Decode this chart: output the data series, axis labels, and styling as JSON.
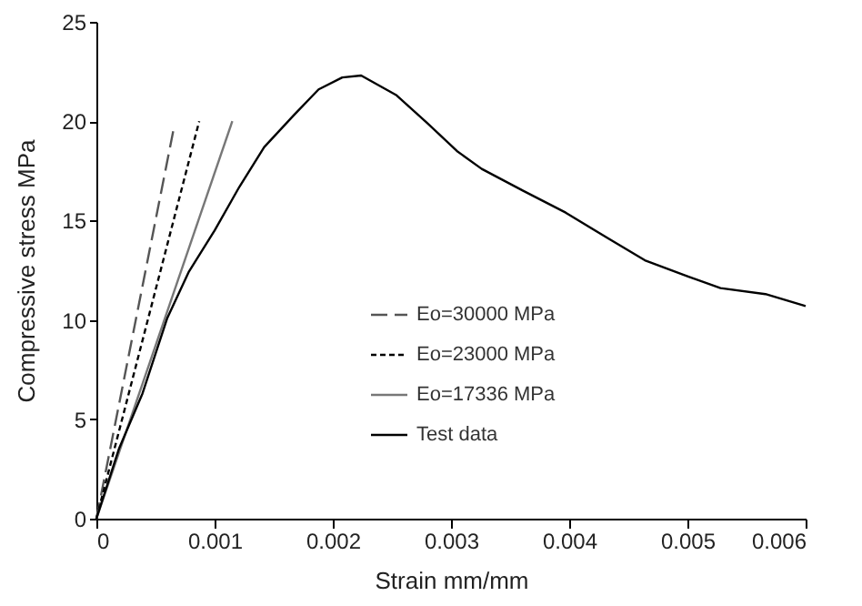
{
  "chart_data": {
    "type": "line",
    "xlabel": "Strain  mm/mm",
    "ylabel": "Compressive stress  MPa",
    "xlim": [
      0,
      0.006
    ],
    "xticks": [
      0,
      0.001,
      0.002,
      0.003,
      0.004,
      0.005,
      0.006
    ],
    "ylim": [
      0,
      25
    ],
    "yticks": [
      0,
      5,
      10,
      15,
      20,
      25
    ],
    "grid": false,
    "legend": "right",
    "marker": "none",
    "series": [
      {
        "name": "Eo=30000 MPa",
        "color": "#555555",
        "line_style": "dashed",
        "x": [
          0,
          0.00066
        ],
        "values": [
          0,
          19.8
        ]
      },
      {
        "name": "Eo=23000 MPa",
        "color": "#000000",
        "line_style": "dotted",
        "x": [
          0,
          0.00087
        ],
        "values": [
          0,
          20
        ]
      },
      {
        "name": "Eo=17336 MPa",
        "color": "#777777",
        "line_style": "solid",
        "x": [
          0,
          0.00115
        ],
        "values": [
          0,
          20
        ]
      },
      {
        "name": "Test data",
        "color": "#000000",
        "line_style": "solid",
        "x": [
          0,
          0.00019,
          0.00039,
          0.0006,
          0.00078,
          0.001,
          0.00121,
          0.00142,
          0.00167,
          0.00188,
          0.00208,
          0.00224,
          0.00254,
          0.0028,
          0.00305,
          0.00326,
          0.00361,
          0.00397,
          0.00433,
          0.00464,
          0.005,
          0.00528,
          0.00566,
          0.006
        ],
        "values": [
          0,
          3.5,
          6.3,
          10.1,
          12.4,
          14.5,
          16.7,
          18.7,
          20.3,
          21.6,
          22.2,
          22.3,
          21.3,
          19.9,
          18.5,
          17.6,
          16.5,
          15.4,
          14.1,
          13.0,
          12.2,
          11.6,
          11.3,
          10.7
        ]
      }
    ]
  }
}
